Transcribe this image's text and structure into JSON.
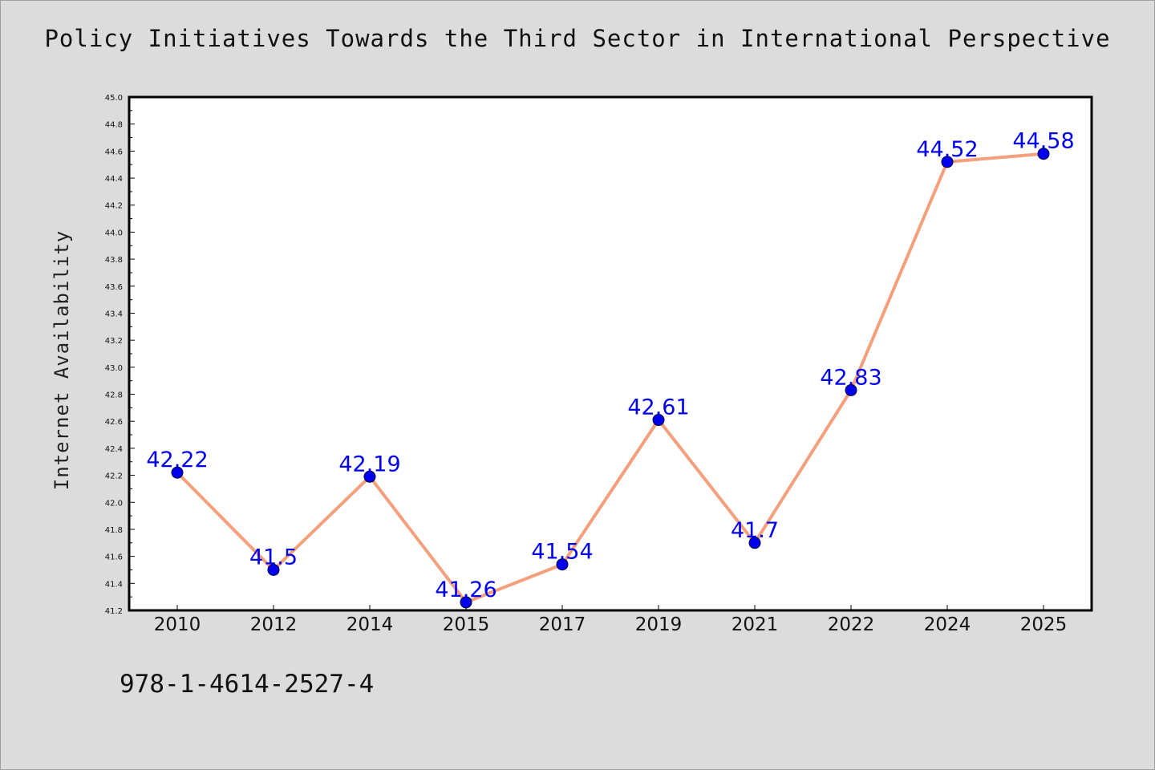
{
  "chart_data": {
    "type": "line",
    "title": "Policy Initiatives Towards the Third Sector in International Perspective",
    "ylabel": "Internet Availability",
    "xlabel": "",
    "categories": [
      "2010",
      "2012",
      "2014",
      "2015",
      "2017",
      "2019",
      "2021",
      "2022",
      "2024",
      "2025"
    ],
    "series": [
      {
        "values": [
          42.22,
          41.5,
          42.19,
          41.26,
          41.54,
          42.61,
          41.7,
          42.83,
          44.52,
          44.58
        ],
        "data_labels": [
          "42.22",
          "41.5",
          "42.19",
          "41.26",
          "41.54",
          "42.61",
          "41.7",
          "42.83",
          "44.52",
          "44.58"
        ]
      }
    ],
    "ylim": [
      41.2,
      45.0
    ],
    "y_major_ticks": [
      "41.2",
      "41.4",
      "41.6",
      "41.8",
      "42.0",
      "42.2",
      "42.4",
      "42.6",
      "42.8",
      "43.0",
      "43.2",
      "43.4",
      "43.6",
      "43.8",
      "44.0",
      "44.2",
      "44.4",
      "44.6",
      "44.8",
      "45.0"
    ],
    "grid": false,
    "legend": "none",
    "colors": {
      "line": "#f4a07c",
      "marker": "#0000ee",
      "data_label": "#0000ee",
      "plot_background": "#ffffff",
      "figure_background": "#dcdcdc"
    }
  },
  "footer": {
    "code": "978-1-4614-2527-4"
  }
}
